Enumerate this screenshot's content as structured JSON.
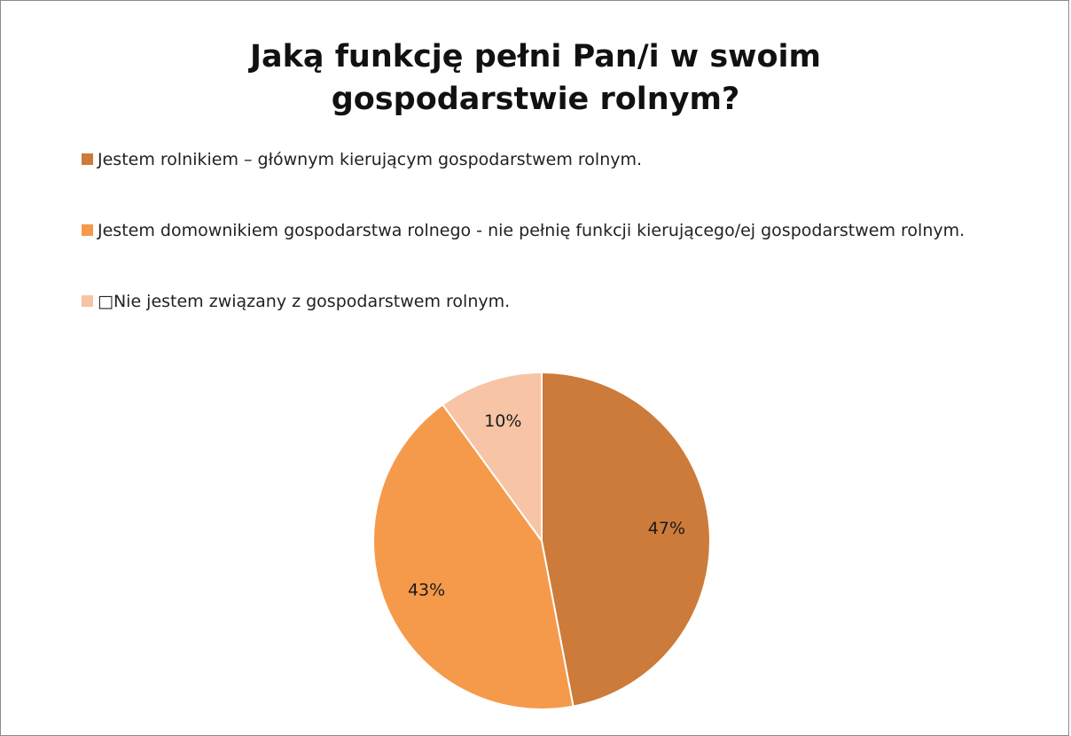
{
  "chart_data": {
    "type": "pie",
    "title": "Jaką funkcję pełni Pan/i w swoim\ngospodarstwie rolnym?",
    "legend_position": "top",
    "categories": [
      "Jestem rolnikiem – głównym kierującym gospodarstwem rolnym.",
      "Jestem domownikiem gospodarstwa rolnego  - nie pełnię funkcji kierującego/ej gospodarstwem rolnym.",
      "□Nie jestem związany z gospodarstwem rolnym."
    ],
    "values": [
      47,
      43,
      10
    ],
    "data_labels": [
      "47%",
      "43%",
      "10%"
    ],
    "colors": [
      "#cd7b3a",
      "#f59a4a",
      "#f7c4a6"
    ]
  }
}
